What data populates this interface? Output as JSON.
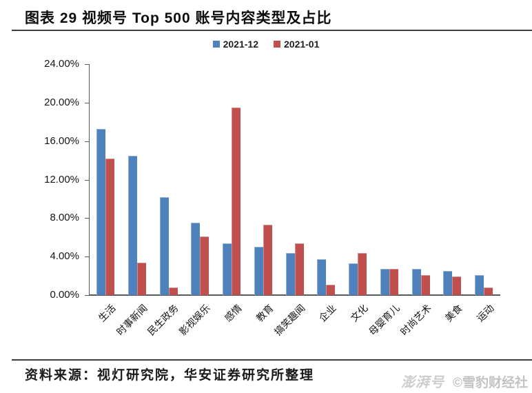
{
  "header": {
    "title": "图表 29 视频号 Top 500 账号内容类型及占比"
  },
  "chart_data": {
    "type": "bar",
    "title": "视频号 Top 500 账号内容类型及占比",
    "categories": [
      "生活",
      "时事新闻",
      "民生政务",
      "影视娱乐",
      "感情",
      "教育",
      "搞笑趣闻",
      "企业",
      "文化",
      "母婴育儿",
      "时尚艺术",
      "美食",
      "运动"
    ],
    "series": [
      {
        "name": "2021-12",
        "color": "#4F81BD",
        "values": [
          17.3,
          14.5,
          10.2,
          7.5,
          5.4,
          5.0,
          4.4,
          3.7,
          3.3,
          2.7,
          2.7,
          2.5,
          2.1
        ]
      },
      {
        "name": "2021-01",
        "color": "#C0504D",
        "values": [
          14.2,
          3.4,
          0.8,
          6.1,
          19.5,
          7.3,
          5.4,
          1.1,
          4.4,
          2.7,
          2.1,
          1.9,
          0.8
        ]
      }
    ],
    "ylim": [
      0,
      24
    ],
    "y_ticks": [
      "0.00%",
      "4.00%",
      "8.00%",
      "12.00%",
      "16.00%",
      "20.00%",
      "24.00%"
    ],
    "xlabel": "",
    "ylabel": "",
    "grid": false,
    "legend_position": "top"
  },
  "footer": {
    "source": "资料来源：视灯研究院，华安证券研究所整理",
    "watermark_logo": "澎湃号",
    "watermark_credit": "©雪豹财经社"
  }
}
